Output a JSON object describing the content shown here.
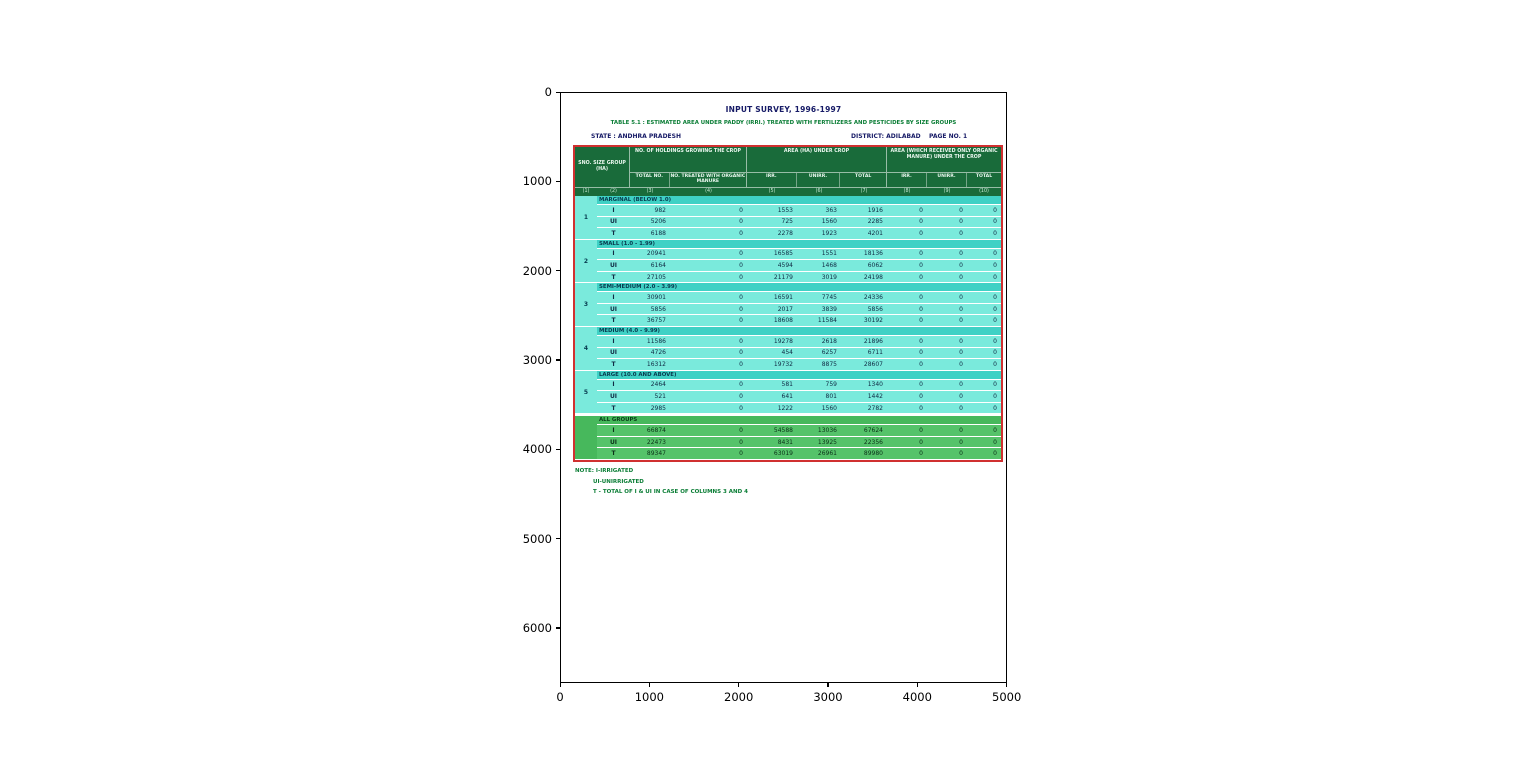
{
  "figure": {
    "x_ticks": [
      "0",
      "1000",
      "2000",
      "3000",
      "4000",
      "5000"
    ],
    "y_ticks": [
      "0",
      "1000",
      "2000",
      "3000",
      "4000",
      "5000",
      "6000"
    ]
  },
  "doc": {
    "title": "INPUT SURVEY, 1996-1997",
    "subtitle": "TABLE 5.1 : ESTIMATED AREA UNDER PADDY (IRRI.) TREATED WITH FERTILIZERS AND PESTICIDES BY SIZE GROUPS",
    "state": "STATE : ANDHRA PRADESH",
    "district": "DISTRICT: ADILABAD",
    "page": "PAGE NO. 1",
    "notes": [
      {
        "text": "NOTE: I-IRRIGATED",
        "indent": 0
      },
      {
        "text": "UI-UNIRRIGATED",
        "indent": 1
      },
      {
        "text": "T - TOTAL OF I & UI IN CASE OF COLUMNS 3 AND 4",
        "indent": 1
      }
    ]
  },
  "table": {
    "header": {
      "size_group": "SNO. SIZE GROUP (HA)",
      "holdings": "NO. OF HOLDINGS GROWING THE CROP",
      "area": "AREA (HA) UNDER CROP",
      "area_manure": "AREA (WHICH RECEIVED ONLY ORGANIC MANURE) UNDER THE CROP",
      "sub": [
        "TOTAL NO.",
        "NO. TREATED WITH ORGANIC MANURE",
        "IRR.",
        "UNIRR.",
        "TOTAL",
        "IRR.",
        "UNIRR.",
        "TOTAL"
      ],
      "col_numbers": [
        "(1)",
        "(2)",
        "(3)",
        "(4)",
        "(5)",
        "(6)",
        "(7)",
        "(8)",
        "(9)",
        "(10)"
      ]
    },
    "groups": [
      {
        "no": "1",
        "label": "MARGINAL (BELOW 1.0)",
        "all": false,
        "rows": [
          [
            "I",
            "982",
            "0",
            "1553",
            "363",
            "1916",
            "0",
            "0",
            "0"
          ],
          [
            "UI",
            "5206",
            "0",
            "725",
            "1560",
            "2285",
            "0",
            "0",
            "0"
          ],
          [
            "T",
            "6188",
            "0",
            "2278",
            "1923",
            "4201",
            "0",
            "0",
            "0"
          ]
        ]
      },
      {
        "no": "2",
        "label": "SMALL (1.0 - 1.99)",
        "all": false,
        "rows": [
          [
            "I",
            "20941",
            "0",
            "16585",
            "1551",
            "18136",
            "0",
            "0",
            "0"
          ],
          [
            "UI",
            "6164",
            "0",
            "4594",
            "1468",
            "6062",
            "0",
            "0",
            "0"
          ],
          [
            "T",
            "27105",
            "0",
            "21179",
            "3019",
            "24198",
            "0",
            "0",
            "0"
          ]
        ]
      },
      {
        "no": "3",
        "label": "SEMI-MEDIUM (2.0 - 3.99)",
        "all": false,
        "rows": [
          [
            "I",
            "30901",
            "0",
            "16591",
            "7745",
            "24336",
            "0",
            "0",
            "0"
          ],
          [
            "UI",
            "5856",
            "0",
            "2017",
            "3839",
            "5856",
            "0",
            "0",
            "0"
          ],
          [
            "T",
            "36757",
            "0",
            "18608",
            "11584",
            "30192",
            "0",
            "0",
            "0"
          ]
        ]
      },
      {
        "no": "4",
        "label": "MEDIUM (4.0 - 9.99)",
        "all": false,
        "rows": [
          [
            "I",
            "11586",
            "0",
            "19278",
            "2618",
            "21896",
            "0",
            "0",
            "0"
          ],
          [
            "UI",
            "4726",
            "0",
            "454",
            "6257",
            "6711",
            "0",
            "0",
            "0"
          ],
          [
            "T",
            "16312",
            "0",
            "19732",
            "8875",
            "28607",
            "0",
            "0",
            "0"
          ]
        ]
      },
      {
        "no": "5",
        "label": "LARGE (10.0 AND ABOVE)",
        "all": false,
        "rows": [
          [
            "I",
            "2464",
            "0",
            "581",
            "759",
            "1340",
            "0",
            "0",
            "0"
          ],
          [
            "UI",
            "521",
            "0",
            "641",
            "801",
            "1442",
            "0",
            "0",
            "0"
          ],
          [
            "T",
            "2985",
            "0",
            "1222",
            "1560",
            "2782",
            "0",
            "0",
            "0"
          ]
        ]
      },
      {
        "no": "",
        "label": "ALL GROUPS",
        "all": true,
        "rows": [
          [
            "I",
            "66874",
            "0",
            "54588",
            "13036",
            "67624",
            "0",
            "0",
            "0"
          ],
          [
            "UI",
            "22473",
            "0",
            "8431",
            "13925",
            "22356",
            "0",
            "0",
            "0"
          ],
          [
            "T",
            "89347",
            "0",
            "63019",
            "26961",
            "89980",
            "0",
            "0",
            "0"
          ]
        ]
      }
    ]
  }
}
